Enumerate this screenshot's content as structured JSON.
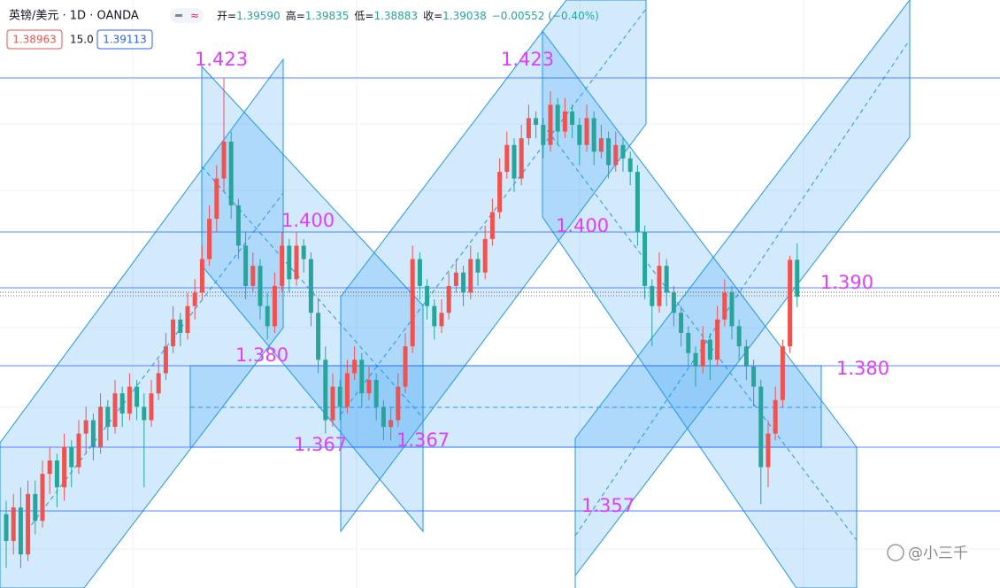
{
  "header": {
    "symbol": "英镑/美元 · 1D · OANDA",
    "ohlc": [
      {
        "label": "开=",
        "value": "1.39590"
      },
      {
        "label": "高=",
        "value": "1.39835"
      },
      {
        "label": "低=",
        "value": "1.38883"
      },
      {
        "label": "收=",
        "value": "1.39038"
      }
    ],
    "change": "−0.00552 (−0.40%)",
    "sell": "1.38963",
    "spread": "15.0",
    "buy": "1.39113"
  },
  "chart_data": {
    "type": "candlestick",
    "up_color": "#ef5350",
    "down_color": "#26a69a",
    "annotation_color": "#e040fb",
    "ylim": [
      1.347,
      1.4346
    ],
    "annotations": [
      "1.423",
      "1.423",
      "1.400",
      "1.400",
      "1.390",
      "1.380",
      "1.380",
      "1.367",
      "1.367",
      "1.357"
    ],
    "ohlc": [
      [
        1.358,
        1.36,
        1.35,
        1.354
      ],
      [
        1.354,
        1.361,
        1.352,
        1.359
      ],
      [
        1.359,
        1.362,
        1.35,
        1.352
      ],
      [
        1.352,
        1.363,
        1.351,
        1.361
      ],
      [
        1.361,
        1.363,
        1.355,
        1.357
      ],
      [
        1.357,
        1.366,
        1.356,
        1.364
      ],
      [
        1.364,
        1.368,
        1.361,
        1.366
      ],
      [
        1.366,
        1.367,
        1.359,
        1.362
      ],
      [
        1.362,
        1.37,
        1.36,
        1.368
      ],
      [
        1.368,
        1.369,
        1.362,
        1.365
      ],
      [
        1.365,
        1.372,
        1.364,
        1.37
      ],
      [
        1.37,
        1.374,
        1.367,
        1.372
      ],
      [
        1.372,
        1.373,
        1.366,
        1.368
      ],
      [
        1.368,
        1.376,
        1.367,
        1.374
      ],
      [
        1.374,
        1.375,
        1.369,
        1.371
      ],
      [
        1.371,
        1.378,
        1.37,
        1.376
      ],
      [
        1.376,
        1.377,
        1.371,
        1.373
      ],
      [
        1.373,
        1.379,
        1.372,
        1.377
      ],
      [
        1.377,
        1.378,
        1.372,
        1.374
      ],
      [
        1.374,
        1.376,
        1.362,
        1.372
      ],
      [
        1.372,
        1.378,
        1.371,
        1.376
      ],
      [
        1.376,
        1.381,
        1.375,
        1.379
      ],
      [
        1.379,
        1.385,
        1.378,
        1.383
      ],
      [
        1.383,
        1.389,
        1.382,
        1.387
      ],
      [
        1.387,
        1.388,
        1.383,
        1.385
      ],
      [
        1.385,
        1.391,
        1.384,
        1.389
      ],
      [
        1.389,
        1.393,
        1.387,
        1.391
      ],
      [
        1.391,
        1.398,
        1.39,
        1.396
      ],
      [
        1.396,
        1.404,
        1.395,
        1.402
      ],
      [
        1.402,
        1.41,
        1.4,
        1.408
      ],
      [
        1.408,
        1.423,
        1.406,
        1.4135
      ],
      [
        1.4135,
        1.415,
        1.402,
        1.404
      ],
      [
        1.404,
        1.405,
        1.396,
        1.398
      ],
      [
        1.398,
        1.4,
        1.39,
        1.392
      ],
      [
        1.392,
        1.397,
        1.391,
        1.395
      ],
      [
        1.395,
        1.396,
        1.387,
        1.389
      ],
      [
        1.389,
        1.391,
        1.384,
        1.386
      ],
      [
        1.386,
        1.394,
        1.385,
        1.392
      ],
      [
        1.392,
        1.4,
        1.391,
        1.398
      ],
      [
        1.398,
        1.399,
        1.391,
        1.393
      ],
      [
        1.393,
        1.4,
        1.392,
        1.398
      ],
      [
        1.398,
        1.399,
        1.394,
        1.396
      ],
      [
        1.396,
        1.397,
        1.386,
        1.388
      ],
      [
        1.388,
        1.39,
        1.379,
        1.381
      ],
      [
        1.381,
        1.383,
        1.37,
        1.372
      ],
      [
        1.372,
        1.379,
        1.371,
        1.377
      ],
      [
        1.377,
        1.378,
        1.372,
        1.374
      ],
      [
        1.374,
        1.381,
        1.373,
        1.379
      ],
      [
        1.379,
        1.383,
        1.378,
        1.381
      ],
      [
        1.381,
        1.382,
        1.374,
        1.376
      ],
      [
        1.376,
        1.38,
        1.375,
        1.378
      ],
      [
        1.378,
        1.379,
        1.372,
        1.374
      ],
      [
        1.374,
        1.375,
        1.369,
        1.371
      ],
      [
        1.371,
        1.374,
        1.369,
        1.372
      ],
      [
        1.372,
        1.379,
        1.371,
        1.377
      ],
      [
        1.377,
        1.385,
        1.376,
        1.383
      ],
      [
        1.383,
        1.398,
        1.382,
        1.396
      ],
      [
        1.396,
        1.397,
        1.39,
        1.392
      ],
      [
        1.392,
        1.393,
        1.387,
        1.389
      ],
      [
        1.389,
        1.39,
        1.384,
        1.386
      ],
      [
        1.386,
        1.39,
        1.385,
        1.388
      ],
      [
        1.388,
        1.394,
        1.387,
        1.392
      ],
      [
        1.392,
        1.396,
        1.391,
        1.394
      ],
      [
        1.394,
        1.395,
        1.389,
        1.391
      ],
      [
        1.391,
        1.398,
        1.39,
        1.396
      ],
      [
        1.396,
        1.397,
        1.392,
        1.394
      ],
      [
        1.394,
        1.401,
        1.393,
        1.399
      ],
      [
        1.399,
        1.405,
        1.398,
        1.403
      ],
      [
        1.403,
        1.411,
        1.402,
        1.409
      ],
      [
        1.409,
        1.415,
        1.408,
        1.413
      ],
      [
        1.413,
        1.414,
        1.406,
        1.408
      ],
      [
        1.408,
        1.416,
        1.407,
        1.414
      ],
      [
        1.414,
        1.419,
        1.413,
        1.417
      ],
      [
        1.417,
        1.418,
        1.414,
        1.416
      ],
      [
        1.416,
        1.417,
        1.411,
        1.413
      ],
      [
        1.413,
        1.421,
        1.412,
        1.419
      ],
      [
        1.419,
        1.42,
        1.413,
        1.415
      ],
      [
        1.415,
        1.42,
        1.414,
        1.418
      ],
      [
        1.418,
        1.419,
        1.414,
        1.416
      ],
      [
        1.416,
        1.417,
        1.41,
        1.413
      ],
      [
        1.413,
        1.419,
        1.412,
        1.417
      ],
      [
        1.417,
        1.418,
        1.41,
        1.412
      ],
      [
        1.412,
        1.416,
        1.411,
        1.414
      ],
      [
        1.414,
        1.415,
        1.408,
        1.41
      ],
      [
        1.41,
        1.415,
        1.409,
        1.413
      ],
      [
        1.413,
        1.414,
        1.409,
        1.411
      ],
      [
        1.411,
        1.412,
        1.407,
        1.409
      ],
      [
        1.409,
        1.41,
        1.398,
        1.4
      ],
      [
        1.4,
        1.401,
        1.39,
        1.392
      ],
      [
        1.392,
        1.393,
        1.383,
        1.389
      ],
      [
        1.389,
        1.397,
        1.388,
        1.395
      ],
      [
        1.395,
        1.396,
        1.389,
        1.391
      ],
      [
        1.391,
        1.392,
        1.386,
        1.388
      ],
      [
        1.388,
        1.389,
        1.383,
        1.385
      ],
      [
        1.385,
        1.386,
        1.38,
        1.382
      ],
      [
        1.382,
        1.383,
        1.377,
        1.38
      ],
      [
        1.38,
        1.386,
        1.379,
        1.384
      ],
      [
        1.384,
        1.385,
        1.378,
        1.381
      ],
      [
        1.381,
        1.389,
        1.38,
        1.387
      ],
      [
        1.387,
        1.393,
        1.386,
        1.391
      ],
      [
        1.391,
        1.392,
        1.384,
        1.386
      ],
      [
        1.386,
        1.387,
        1.381,
        1.383
      ],
      [
        1.383,
        1.384,
        1.378,
        1.38
      ],
      [
        1.38,
        1.381,
        1.374,
        1.377
      ],
      [
        1.377,
        1.378,
        1.3595,
        1.365
      ],
      [
        1.365,
        1.372,
        1.362,
        1.37
      ],
      [
        1.37,
        1.377,
        1.369,
        1.375
      ],
      [
        1.375,
        1.384,
        1.374,
        1.383
      ],
      [
        1.383,
        1.3965,
        1.382,
        1.3959
      ],
      [
        1.3959,
        1.39835,
        1.38883,
        1.39038
      ]
    ]
  },
  "watermark": "@小三千"
}
